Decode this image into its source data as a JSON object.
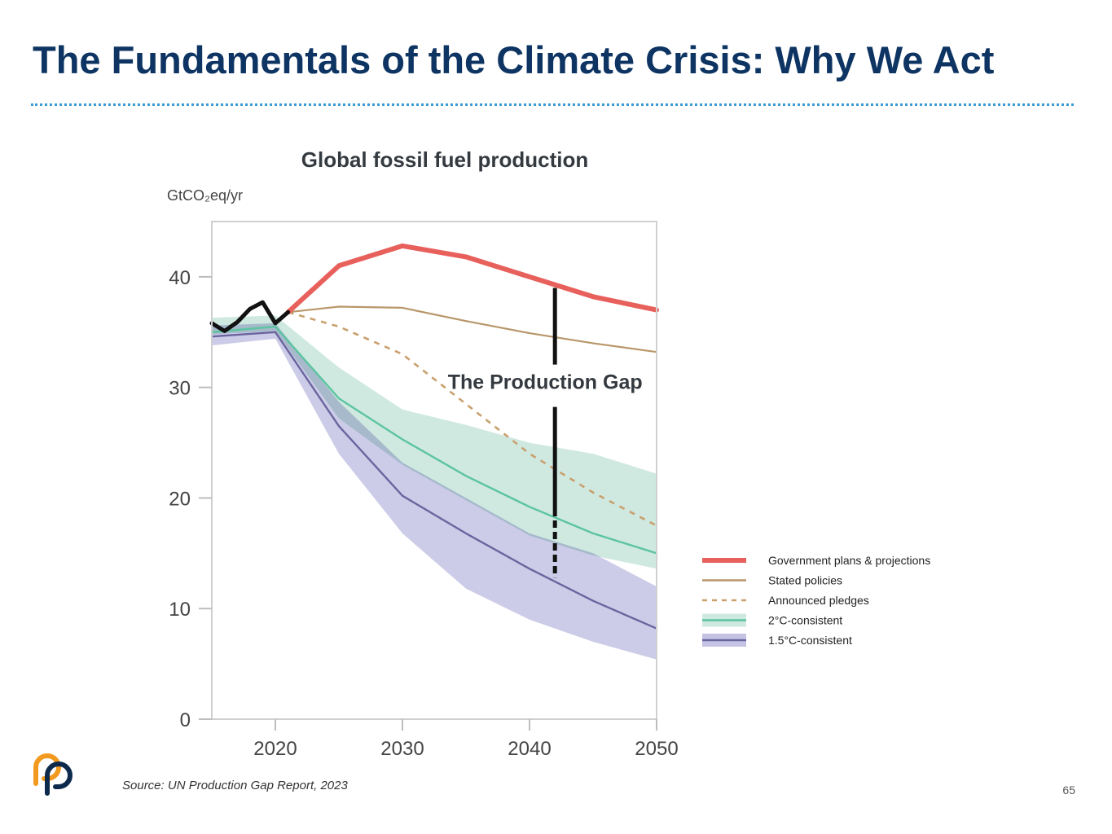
{
  "slide": {
    "title": "The Fundamentals of the Climate Crisis: Why We Act",
    "source": "Source:  UN Production Gap Report, 2023",
    "page_number": "65",
    "logo_icon": "orange-navy-interlocking-p-logo"
  },
  "colors": {
    "title": "#0d3462",
    "rule": "#3a9ad5",
    "government": "#e8605c",
    "stated": "#b8976a",
    "announced": "#c9a06e",
    "two_c_line": "#5cc4a0",
    "two_c_band": "#cfe9e0",
    "one_five_c_line": "#6a659e",
    "one_five_c_band": "#c4c3e4",
    "historical": "#111111",
    "gap_marker": "#111111"
  },
  "chart_data": {
    "type": "line",
    "title": "Global fossil fuel production",
    "unit_label": "GtCO₂eq/yr",
    "xlabel": "",
    "ylabel": "",
    "xlim": [
      2015,
      2050
    ],
    "ylim": [
      0,
      45
    ],
    "x_ticks": [
      2020,
      2030,
      2040,
      2050
    ],
    "y_ticks": [
      0,
      10,
      20,
      30,
      40
    ],
    "grid": false,
    "legend_position": "right",
    "annotation": {
      "text": "The Production Gap",
      "x": 2042,
      "y_top": 39,
      "y_bottom": 12.8
    },
    "historical": {
      "x": [
        2015,
        2016,
        2017,
        2018,
        2019,
        2020,
        2021
      ],
      "values": [
        35.8,
        35.1,
        35.9,
        37.1,
        37.7,
        35.8,
        36.8
      ]
    },
    "series": [
      {
        "name": "Government plans & projections",
        "style": "thick-solid",
        "x": [
          2021,
          2025,
          2030,
          2035,
          2040,
          2045,
          2050
        ],
        "values": [
          36.8,
          41.0,
          42.8,
          41.8,
          40.0,
          38.2,
          37.0
        ]
      },
      {
        "name": "Stated policies",
        "style": "solid",
        "x": [
          2021,
          2025,
          2030,
          2035,
          2040,
          2045,
          2050
        ],
        "values": [
          36.8,
          37.3,
          37.2,
          36.0,
          34.9,
          34.0,
          33.2
        ]
      },
      {
        "name": "Announced pledges",
        "style": "dashed",
        "x": [
          2021,
          2025,
          2030,
          2035,
          2040,
          2045,
          2050
        ],
        "values": [
          36.8,
          35.5,
          33.0,
          28.5,
          24.0,
          20.5,
          17.5
        ]
      },
      {
        "name": "2°C-consistent",
        "style": "solid-with-band",
        "x": [
          2015,
          2020,
          2025,
          2030,
          2035,
          2040,
          2045,
          2050
        ],
        "values": [
          35.0,
          35.5,
          29.0,
          25.3,
          22.0,
          19.2,
          16.8,
          15.0
        ],
        "band_upper": [
          36.3,
          36.5,
          31.8,
          28.0,
          26.6,
          25.0,
          24.0,
          22.2
        ],
        "band_lower": [
          34.8,
          35.1,
          27.2,
          23.0,
          19.8,
          16.6,
          14.8,
          13.6
        ]
      },
      {
        "name": "1.5°C-consistent",
        "style": "solid-with-band",
        "x": [
          2015,
          2020,
          2025,
          2030,
          2035,
          2040,
          2045,
          2050
        ],
        "values": [
          34.6,
          35.0,
          26.5,
          20.2,
          16.8,
          13.6,
          10.7,
          8.2
        ],
        "band_upper": [
          35.6,
          35.8,
          28.7,
          23.2,
          20.0,
          16.8,
          15.0,
          12.0
        ],
        "band_lower": [
          33.8,
          34.4,
          24.0,
          16.8,
          11.8,
          9.0,
          7.0,
          5.4
        ]
      }
    ]
  }
}
